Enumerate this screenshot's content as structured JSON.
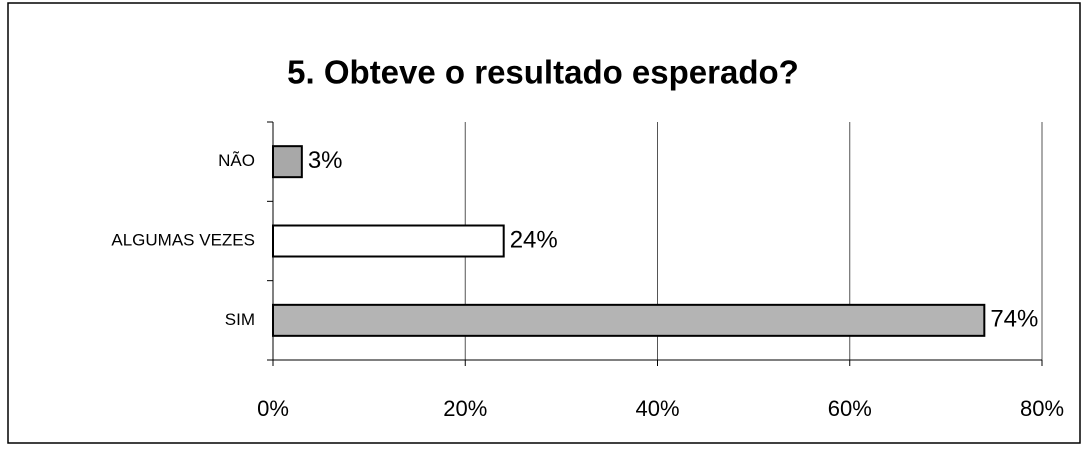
{
  "chart_data": {
    "type": "hbar",
    "title": "5. Obteve o resultado esperado?",
    "categories": [
      "NÃO",
      "ALGUMAS VEZES",
      "SIM"
    ],
    "values": [
      3,
      24,
      74
    ],
    "value_labels": [
      "3%",
      "24%",
      "74%"
    ],
    "colors": [
      "#a8a8a8",
      "#ffffff",
      "#b4b4b4"
    ],
    "xlim": [
      0,
      80
    ],
    "xticks": [
      {
        "value": 0,
        "label": "0%"
      },
      {
        "value": 20,
        "label": "20%"
      },
      {
        "value": 40,
        "label": "40%"
      },
      {
        "value": 60,
        "label": "60%"
      },
      {
        "value": 80,
        "label": "80%"
      }
    ],
    "grid": true
  }
}
